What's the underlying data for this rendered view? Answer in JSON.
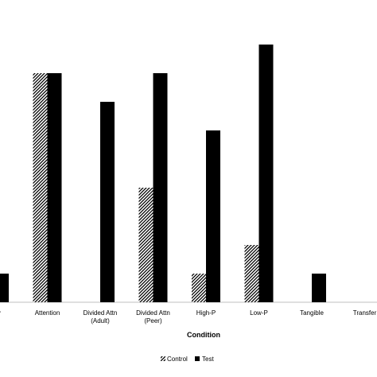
{
  "chart_data": {
    "type": "bar",
    "title": "",
    "xlabel": "Condition",
    "ylabel": "",
    "categories": [
      "Play",
      "Attention",
      "Divided Attn\n(Adult)",
      "Divided Attn\n(Peer)",
      "High-P",
      "Low-P",
      "Tangible",
      "Transfer"
    ],
    "series": [
      {
        "name": "Control",
        "pattern": "hatched",
        "color": "#000000",
        "values": [
          0,
          4,
          0,
          2,
          0.5,
          1,
          0,
          0
        ]
      },
      {
        "name": "Test",
        "pattern": "solid",
        "color": "#000000",
        "values": [
          0.5,
          4,
          3.5,
          4,
          3,
          4.5,
          0.5,
          0
        ]
      }
    ],
    "ylim": [
      0,
      6
    ],
    "grid": false,
    "legend_position": "bottom-center"
  }
}
